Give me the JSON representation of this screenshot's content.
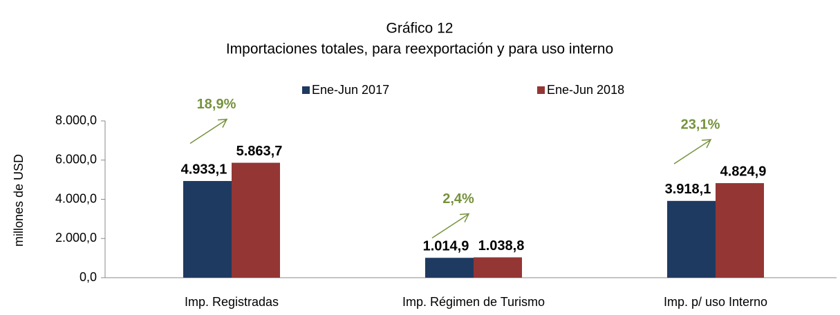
{
  "chart_data": {
    "type": "bar",
    "title": "Gráfico 12",
    "subtitle": "Importaciones totales, para reexportación y para uso interno",
    "y_label": "millones de USD",
    "categories": [
      "Imp. Registradas",
      "Imp. Régimen de Turismo",
      "Imp. p/ uso Interno"
    ],
    "series": [
      {
        "name": "Ene-Jun 2017",
        "color": "#1f3a60",
        "values": [
          4933.1,
          1014.9,
          3918.1
        ],
        "value_labels": [
          "4.933,1",
          "1.014,9",
          "3.918,1"
        ]
      },
      {
        "name": "Ene-Jun 2018",
        "color": "#943634",
        "values": [
          5863.7,
          1038.8,
          4824.9
        ],
        "value_labels": [
          "5.863,7",
          "1.038,8",
          "4.824,9"
        ]
      }
    ],
    "annotations": [
      "18,9%",
      "2,4%",
      "23,1%"
    ],
    "annotation_color": "#76923c",
    "ylim": [
      0,
      8000
    ],
    "yticks": [
      {
        "value": 0,
        "label": "0,0"
      },
      {
        "value": 2000,
        "label": "2.000,0"
      },
      {
        "value": 4000,
        "label": "4.000,0"
      },
      {
        "value": 6000,
        "label": "6.000,0"
      },
      {
        "value": 8000,
        "label": "8.000,0"
      }
    ],
    "grid": false,
    "legend": "top"
  }
}
